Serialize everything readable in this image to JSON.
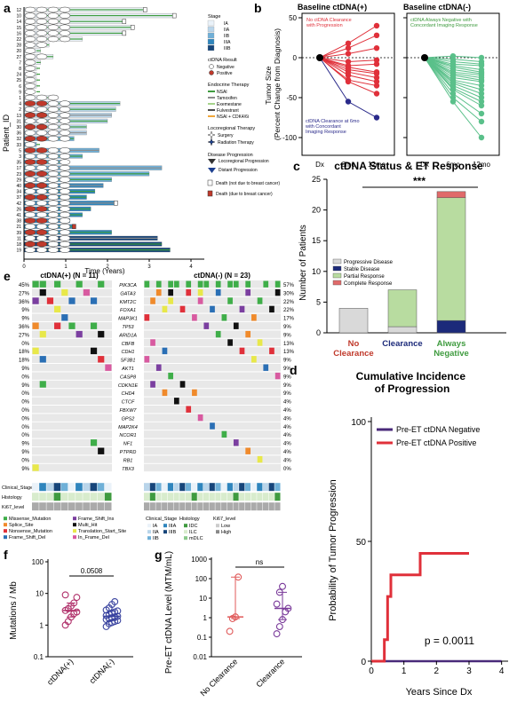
{
  "panel_letters": [
    "a",
    "b",
    "c",
    "d",
    "e",
    "f",
    "g"
  ],
  "panel_a": {
    "ylabel": "Patient_ID",
    "xlabel": "Time (Years)",
    "x_ticks": [
      "0",
      "1",
      "2",
      "3",
      "4"
    ],
    "patient_ids": [
      "12",
      "10",
      "14",
      "15",
      "16",
      "22",
      "28",
      "20",
      "27",
      "7",
      "8",
      "24",
      "25",
      "6",
      "9",
      "1",
      "4",
      "2",
      "13",
      "31",
      "30",
      "36",
      "32",
      "33",
      "5",
      "3",
      "35",
      "17",
      "23",
      "29",
      "40",
      "34",
      "37",
      "42",
      "26",
      "41",
      "38",
      "21",
      "39",
      "11",
      "18",
      "19"
    ],
    "followup_years": [
      2.9,
      3.6,
      2.4,
      2.6,
      2.4,
      1.4,
      0.6,
      0.4,
      0.7,
      0.4,
      0.3,
      0.3,
      0.3,
      0.3,
      0.2,
      0.8,
      2.3,
      2.2,
      2.1,
      2.0,
      1.5,
      1.5,
      1.2,
      0.3,
      1.8,
      1.4,
      1.0,
      3.3,
      3.0,
      2.1,
      1.9,
      1.7,
      1.5,
      2.2,
      1.6,
      1.4,
      1.1,
      1.2,
      2.1,
      3.2,
      3.3,
      3.5
    ],
    "stage_legend_title": "Stage",
    "stages": [
      {
        "label": "IA",
        "color": "#eaf2f9"
      },
      {
        "label": "IIA",
        "color": "#b9d5ea"
      },
      {
        "label": "IIB",
        "color": "#6fb0d8"
      },
      {
        "label": "IIIA",
        "color": "#2f85bd"
      },
      {
        "label": "IIIB",
        "color": "#16457a"
      }
    ],
    "ctdna_legend_title": "ctDNA Result",
    "ctdna_items": [
      {
        "label": "Negative",
        "color": "#ffffff"
      },
      {
        "label": "Positive",
        "color": "#c0392b"
      }
    ],
    "et_legend_title": "Endocrine Therapy",
    "et_items": [
      {
        "label": "NSAI",
        "color": "#3f9b3f"
      },
      {
        "label": "Tamoxifen",
        "color": "#8c8c8c"
      },
      {
        "label": "Exemestane",
        "color": "#a5d38b"
      },
      {
        "label": "Fulvestrant",
        "color": "#4a4a4a"
      },
      {
        "label": "NSAI + CDK4/6i",
        "color": "#f0a63a"
      }
    ],
    "loco_legend_title": "Locoregional Therapy",
    "loco_items": [
      {
        "label": "Surgery",
        "icon": "four-point-star-outline"
      },
      {
        "label": "Radiation Therapy",
        "icon": "four-point-star-filled"
      }
    ],
    "prog_legend_title": "Disease Progression",
    "prog_items": [
      {
        "label": "Locoregional Progression",
        "color": "#333333"
      },
      {
        "label": "Distant Progression",
        "color": "#1c3f8f"
      }
    ],
    "death_items": [
      {
        "label": "Death (not due to breast cancer)",
        "color": "#ffffff"
      },
      {
        "label": "Death (due to breast cancer)",
        "color": "#c0392b"
      }
    ]
  },
  "panel_b": {
    "ylabel": "Tumor Size (Percent Change from Diagnosis)",
    "left_title": "Baseline ctDNA(+)",
    "right_title": "Baseline ctDNA(-)",
    "x_ticks": [
      "Dx",
      "6mo",
      "12mo"
    ],
    "y_ticks": [
      "50",
      "0",
      "-50",
      "-100"
    ],
    "left_annot_red": "No ctDNA Clearance with Progression",
    "left_annot_blue": "ctDNA Clearance at 6mo with Concordant Imaging Response",
    "right_annot_green": "ctDNA Always Negative with Concordant Imaging Response"
  },
  "chart_data": [
    {
      "type": "line",
      "title": "Baseline ctDNA(+)",
      "ylabel": "Tumor Size (Percent Change from Diagnosis)",
      "x": [
        "Dx",
        "6mo",
        "12mo"
      ],
      "ylim": [
        -100,
        50
      ],
      "series": [
        {
          "values": [
            0,
            18,
            40
          ]
        },
        {
          "values": [
            0,
            12,
            28
          ]
        },
        {
          "values": [
            0,
            5,
            12
          ]
        },
        {
          "values": [
            0,
            -5,
            -3
          ]
        },
        {
          "values": [
            0,
            -10,
            -8
          ]
        },
        {
          "values": [
            0,
            -12,
            -18
          ]
        },
        {
          "values": [
            0,
            -15,
            -20
          ]
        },
        {
          "values": [
            0,
            -18,
            -25
          ]
        },
        {
          "values": [
            0,
            -22,
            -30
          ]
        },
        {
          "values": [
            0,
            -28,
            -35
          ]
        },
        {
          "values": [
            0,
            -30,
            -45
          ]
        },
        {
          "values": [
            0,
            -55,
            -75
          ]
        }
      ]
    },
    {
      "type": "line",
      "title": "Baseline ctDNA(-)",
      "x": [
        "Dx",
        "6mo",
        "12mo"
      ],
      "ylim": [
        -100,
        50
      ],
      "series": [
        {
          "values": [
            0,
            2,
            0
          ]
        },
        {
          "values": [
            0,
            -2,
            -5
          ]
        },
        {
          "values": [
            0,
            -5,
            -8
          ]
        },
        {
          "values": [
            0,
            -8,
            -10
          ]
        },
        {
          "values": [
            0,
            -10,
            -15
          ]
        },
        {
          "values": [
            0,
            -12,
            -18
          ]
        },
        {
          "values": [
            0,
            -15,
            -20
          ]
        },
        {
          "values": [
            0,
            -18,
            -22
          ]
        },
        {
          "values": [
            0,
            -20,
            -25
          ]
        },
        {
          "values": [
            0,
            -22,
            -28
          ]
        },
        {
          "values": [
            0,
            -25,
            -30
          ]
        },
        {
          "values": [
            0,
            -28,
            -35
          ]
        },
        {
          "values": [
            0,
            -30,
            -40
          ]
        },
        {
          "values": [
            0,
            -32,
            -45
          ]
        },
        {
          "values": [
            0,
            -35,
            -50
          ]
        },
        {
          "values": [
            0,
            -38,
            -55
          ]
        },
        {
          "values": [
            0,
            -40,
            -60
          ]
        },
        {
          "values": [
            0,
            -45,
            -70
          ]
        },
        {
          "values": [
            0,
            -50,
            -80
          ]
        },
        {
          "values": [
            0,
            -55,
            -100
          ]
        }
      ]
    },
    {
      "type": "bar",
      "title": "ctDNA Status & ET Response",
      "ylabel": "Number of Patients",
      "categories": [
        "No Clearance",
        "Clearance",
        "Always Negative"
      ],
      "category_colors": [
        "#c0392b",
        "#1c2a7a",
        "#3f9b3f"
      ],
      "ylim": [
        0,
        25
      ],
      "y_ticks": [
        "0",
        "5",
        "10",
        "15",
        "20",
        "25"
      ],
      "significance": "***",
      "series": [
        {
          "name": "Progressive Disease",
          "color": "#d9d9d9",
          "values": [
            4,
            1,
            0
          ]
        },
        {
          "name": "Stable Disease",
          "color": "#1c2a7a",
          "values": [
            0,
            0,
            2
          ]
        },
        {
          "name": "Partial Response",
          "color": "#b8dca0",
          "values": [
            0,
            6,
            20
          ]
        },
        {
          "name": "Complete Response",
          "color": "#e06a6a",
          "values": [
            0,
            0,
            1
          ]
        }
      ]
    },
    {
      "type": "line",
      "title": "Cumulative Incidence of Progression",
      "xlabel": "Years Since Dx",
      "ylabel": "Probability of Tumor Progression",
      "x_ticks": [
        "0",
        "1",
        "2",
        "3",
        "4"
      ],
      "y_ticks": [
        "0",
        "50",
        "100"
      ],
      "ylim": [
        0,
        100
      ],
      "xlim": [
        0,
        4.2
      ],
      "annotation": "p = 0.0011",
      "series": [
        {
          "name": "Pre-ET ctDNA Negative",
          "color": "#4a2a7a",
          "points": [
            [
              0,
              0
            ],
            [
              4.0,
              0
            ]
          ]
        },
        {
          "name": "Pre-ET ctDNA Positive",
          "color": "#e0303a",
          "points": [
            [
              0,
              0
            ],
            [
              0.4,
              0
            ],
            [
              0.4,
              9
            ],
            [
              0.5,
              9
            ],
            [
              0.5,
              27
            ],
            [
              0.6,
              27
            ],
            [
              0.6,
              36
            ],
            [
              1.5,
              36
            ],
            [
              1.5,
              45
            ],
            [
              3.0,
              45
            ]
          ]
        }
      ]
    },
    {
      "type": "scatter",
      "ylabel": "Mutations / Mb",
      "categories": [
        "ctDNA(+)",
        "ctDNA(-)"
      ],
      "y_ticks": [
        "0.1",
        "1",
        "10",
        "100"
      ],
      "scale": "log",
      "annotation": "0.0508",
      "series": [
        {
          "name": "ctDNA(+)",
          "color": "#b0306a",
          "values": [
            1.0,
            1.3,
            1.8,
            2.3,
            2.6,
            2.9,
            3.3,
            4.0,
            5.0,
            7.5,
            9.0
          ]
        },
        {
          "name": "ctDNA(-)",
          "color": "#3a44a0",
          "values": [
            0.9,
            1.1,
            1.2,
            1.3,
            1.4,
            1.5,
            1.6,
            1.7,
            1.8,
            1.9,
            2.0,
            2.2,
            2.4,
            2.6,
            2.8,
            3.0,
            3.5,
            4.5,
            5.5
          ]
        }
      ]
    },
    {
      "type": "scatter",
      "ylabel": "Pre-ET ctDNA Level (MTM/mL)",
      "categories": [
        "No Clearance",
        "Clearance"
      ],
      "y_ticks": [
        "0.01",
        "0.1",
        "1",
        "10",
        "100",
        "1000"
      ],
      "scale": "log",
      "annotation": "ns",
      "series": [
        {
          "name": "No Clearance",
          "color": "#e05a5a",
          "values": [
            0.2,
            0.9,
            1.1,
            120
          ]
        },
        {
          "name": "Clearance",
          "color": "#7a3a9a",
          "values": [
            0.15,
            0.35,
            0.8,
            2.0,
            3.0,
            5.0,
            20,
            40
          ]
        }
      ]
    }
  ],
  "panel_e": {
    "left_title": "ctDNA(+) (N = 11)",
    "right_title": "ctDNA(-) (N = 23)",
    "genes": [
      "PIK3CA",
      "GATA3",
      "KMT2C",
      "FOXA1",
      "MAP3K1",
      "TP53",
      "ARID1A",
      "CBFB",
      "CDH1",
      "SF3B1",
      "AKT1",
      "CASP8",
      "CDKN1E",
      "CHD4",
      "CTCF",
      "FBXW7",
      "GPS2",
      "MAP2K4",
      "NCOR1",
      "NF1",
      "PTPRD",
      "RB1",
      "TBX3"
    ],
    "left_pct": [
      "45%",
      "27%",
      "36%",
      "9%",
      "9%",
      "36%",
      "27%",
      "0%",
      "18%",
      "18%",
      "9%",
      "0%",
      "9%",
      "0%",
      "0%",
      "0%",
      "0%",
      "0%",
      "0%",
      "9%",
      "9%",
      "0%",
      "9%"
    ],
    "right_pct": [
      "57%",
      "30%",
      "22%",
      "22%",
      "17%",
      "9%",
      "9%",
      "13%",
      "13%",
      "9%",
      "9%",
      "9%",
      "9%",
      "9%",
      "4%",
      "4%",
      "4%",
      "4%",
      "4%",
      "4%",
      "4%",
      "4%",
      "0%"
    ],
    "row_labels": [
      "Clinical_Stage",
      "Histology",
      "Ki67_level"
    ],
    "mut_legend": [
      {
        "label": "Missense_Mutation",
        "color": "#3fae49"
      },
      {
        "label": "Splice_Site",
        "color": "#f08a2b"
      },
      {
        "label": "Nonsense_Mutation",
        "color": "#e0303a"
      },
      {
        "label": "Frame_Shift_Del",
        "color": "#2a6fb5"
      },
      {
        "label": "Frame_Shift_Ins",
        "color": "#7b3fa0"
      },
      {
        "label": "Multi_Hit",
        "color": "#111111"
      },
      {
        "label": "Translation_Start_Site",
        "color": "#e8e84a"
      },
      {
        "label": "In_Frame_Del",
        "color": "#d85aa0"
      }
    ],
    "annot_legend_titles": [
      "Clinical_Stage",
      "Histology",
      "Ki67_level"
    ],
    "stage_legend": [
      "IA",
      "IIA",
      "IIB",
      "IIIA",
      "IIIB"
    ],
    "histology_legend": [
      "IDC",
      "ILC",
      "mDLC"
    ],
    "ki67_legend": [
      "Low",
      "High"
    ]
  }
}
